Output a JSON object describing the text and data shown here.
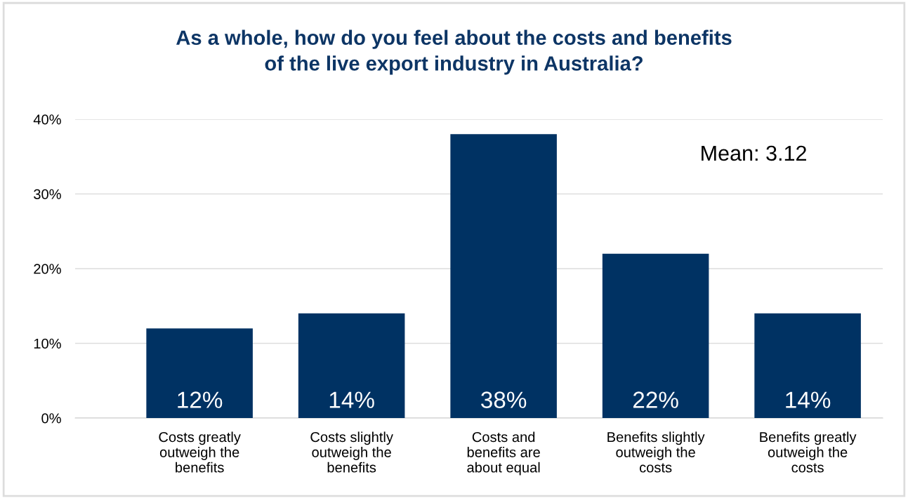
{
  "chart_data": {
    "type": "bar",
    "title": "As a whole, how do you feel about the costs and benefits\nof the live export industry in Australia?",
    "categories": [
      "Costs greatly\noutweigh the\nbenefits",
      "Costs slightly\noutweigh the\nbenefits",
      "Costs and\nbenefits are\nabout equal",
      "Benefits slightly\noutweigh the\ncosts",
      "Benefits greatly\noutweigh the\ncosts"
    ],
    "values": [
      12,
      14,
      38,
      22,
      14
    ],
    "value_labels": [
      "12%",
      "14%",
      "38%",
      "22%",
      "14%"
    ],
    "color": "#003263",
    "ylim": [
      0,
      40
    ],
    "yticks": [
      {
        "value": 0,
        "label": "0%"
      },
      {
        "value": 10,
        "label": "10%"
      },
      {
        "value": 20,
        "label": "20%"
      },
      {
        "value": 30,
        "label": "30%"
      },
      {
        "value": 40,
        "label": "40%"
      }
    ],
    "grid": "y",
    "annotations": [
      "Mean: 3.12"
    ]
  }
}
